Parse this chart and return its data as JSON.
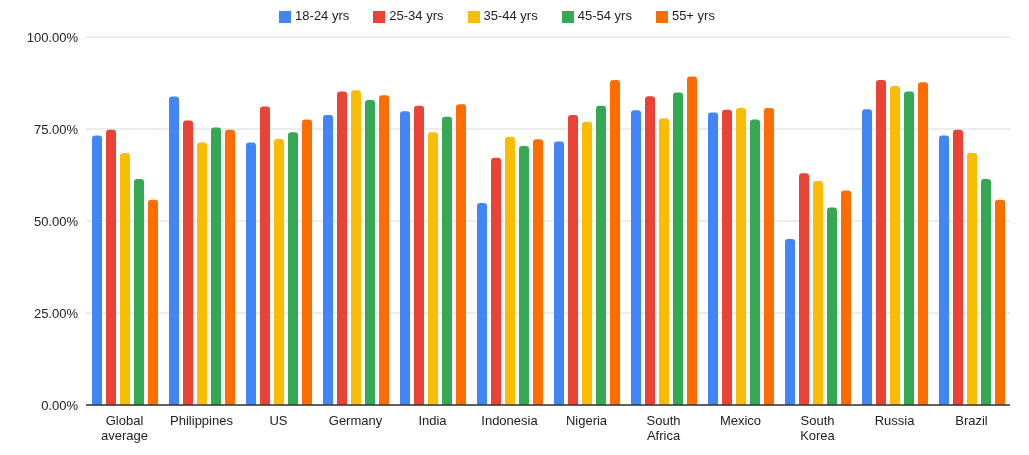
{
  "chart_data": {
    "type": "bar",
    "categories": [
      "Global average",
      "Philippines",
      "US",
      "Germany",
      "India",
      "Indonesia",
      "Nigeria",
      "South Africa",
      "Mexico",
      "South Korea",
      "Russia",
      "Brazil"
    ],
    "series": [
      {
        "name": "18-24 yrs",
        "color": "#4285f4",
        "values": [
          73.2,
          83.8,
          71.3,
          78.8,
          79.8,
          54.9,
          71.6,
          80.1,
          79.5,
          45.1,
          80.4,
          73.2
        ]
      },
      {
        "name": "25-34 yrs",
        "color": "#ea4335",
        "values": [
          74.8,
          77.3,
          81.1,
          85.2,
          81.3,
          67.2,
          78.8,
          83.9,
          80.2,
          63.0,
          88.3,
          74.8
        ]
      },
      {
        "name": "35-44 yrs",
        "color": "#fbbc04",
        "values": [
          68.5,
          71.3,
          72.3,
          85.5,
          74.1,
          72.9,
          77.0,
          77.9,
          80.7,
          60.9,
          86.7,
          68.5
        ]
      },
      {
        "name": "45-54 yrs",
        "color": "#34a853",
        "values": [
          61.4,
          75.4,
          74.1,
          82.9,
          78.3,
          70.4,
          81.3,
          84.9,
          77.6,
          53.7,
          85.2,
          61.4
        ]
      },
      {
        "name": "55+ yrs",
        "color": "#ff6d01",
        "values": [
          55.8,
          74.8,
          77.6,
          84.2,
          81.7,
          72.2,
          88.3,
          89.3,
          80.7,
          58.3,
          87.7,
          55.8
        ]
      }
    ],
    "ylim": [
      0,
      100
    ],
    "yticks": [
      {
        "value": 0,
        "label": "0.00%"
      },
      {
        "value": 25,
        "label": "25.00%"
      },
      {
        "value": 50,
        "label": "50.00%"
      },
      {
        "value": 75,
        "label": "75.00%"
      },
      {
        "value": 100,
        "label": "100.00%"
      }
    ],
    "grid": "y",
    "legend": "top"
  }
}
